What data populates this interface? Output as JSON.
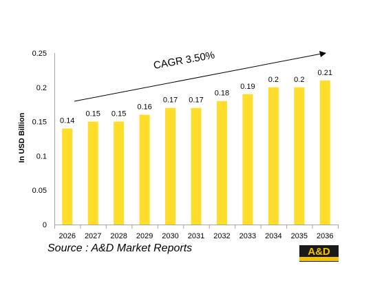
{
  "chart_data": {
    "type": "bar",
    "categories": [
      "2026",
      "2027",
      "2028",
      "2029",
      "2030",
      "2031",
      "2032",
      "2033",
      "2034",
      "2035",
      "2036"
    ],
    "values": [
      0.14,
      0.15,
      0.15,
      0.16,
      0.17,
      0.17,
      0.18,
      0.19,
      0.2,
      0.2,
      0.21
    ],
    "data_labels": [
      "0.14",
      "0.15",
      "0.15",
      "0.16",
      "0.17",
      "0.17",
      "0.18",
      "0.19",
      "0.2",
      "0.2",
      "0.21"
    ],
    "title": "",
    "xlabel": "",
    "ylabel": "In USD Billion",
    "ylim": [
      0,
      0.25
    ],
    "yticks": [
      "0",
      "0.05",
      "0.1",
      "0.15",
      "0.2",
      "0.25"
    ],
    "ytick_values": [
      0,
      0.05,
      0.1,
      0.15,
      0.2,
      0.25
    ],
    "grid": false,
    "legend": "none",
    "bar_color": "#FFDE2B",
    "annotation": "CAGR 3.50%"
  },
  "source_text": "Source : A&D Market Reports",
  "logo": {
    "text": "A&D",
    "color": "#F5C200",
    "background": "#1A1A1A"
  }
}
